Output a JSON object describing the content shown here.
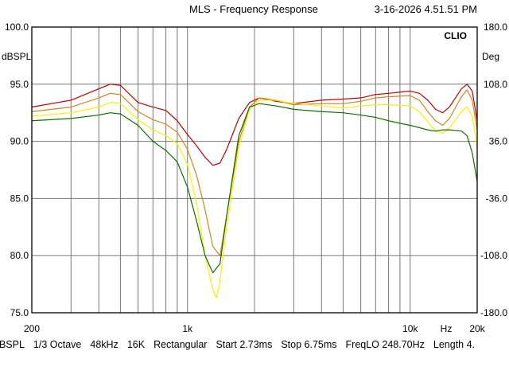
{
  "header": {
    "title": "MLS - Frequency Response",
    "datetime": "3-16-2026 4.51.51 PM"
  },
  "footer": {
    "items": [
      "dBSPL",
      "1/3 Octave",
      "48kHz",
      "16K",
      "Rectangular",
      "Start 2.73ms",
      "Stop 6.75ms",
      "FreqLO 248.70Hz",
      "Length 4."
    ]
  },
  "chart_data": {
    "type": "line",
    "brand": "CLIO",
    "xscale": "log",
    "xlim": [
      200,
      20000
    ],
    "ylim": [
      75,
      100
    ],
    "y2lim": [
      -180,
      180
    ],
    "ylabel": "dBSPL",
    "y2label": "Deg",
    "xunit": "Hz",
    "grid": true,
    "xticks": [
      {
        "value": 200,
        "label": "200"
      },
      {
        "value": 1000,
        "label": "1k"
      },
      {
        "value": 10000,
        "label": "10k"
      },
      {
        "value": 20000,
        "label": "20k"
      }
    ],
    "yticks": [
      "75.0",
      "80.0",
      "85.0",
      "90.0",
      "95.0",
      "100.0"
    ],
    "y2ticks": [
      "-180.0",
      "-108.0",
      "-36.0",
      "36.0",
      "108.0",
      "180.0"
    ],
    "series": [
      {
        "color": "#c00000",
        "points": [
          [
            200,
            93.0
          ],
          [
            300,
            93.6
          ],
          [
            400,
            94.6
          ],
          [
            450,
            95.0
          ],
          [
            500,
            94.9
          ],
          [
            600,
            93.4
          ],
          [
            700,
            93.0
          ],
          [
            800,
            92.7
          ],
          [
            900,
            91.8
          ],
          [
            1000,
            90.6
          ],
          [
            1100,
            89.6
          ],
          [
            1200,
            88.6
          ],
          [
            1300,
            87.9
          ],
          [
            1400,
            88.1
          ],
          [
            1500,
            89.3
          ],
          [
            1700,
            92.0
          ],
          [
            1900,
            93.4
          ],
          [
            2100,
            93.8
          ],
          [
            2500,
            93.5
          ],
          [
            3000,
            93.3
          ],
          [
            4000,
            93.6
          ],
          [
            5000,
            93.7
          ],
          [
            6000,
            93.8
          ],
          [
            7000,
            94.1
          ],
          [
            8000,
            94.2
          ],
          [
            10000,
            94.4
          ],
          [
            11000,
            94.2
          ],
          [
            12000,
            93.6
          ],
          [
            13000,
            92.8
          ],
          [
            14000,
            92.5
          ],
          [
            15000,
            93.0
          ],
          [
            17000,
            94.6
          ],
          [
            18000,
            95.0
          ],
          [
            19000,
            94.4
          ],
          [
            20000,
            91.8
          ]
        ]
      },
      {
        "color": "#d2841e",
        "points": [
          [
            200,
            92.6
          ],
          [
            300,
            93.0
          ],
          [
            400,
            93.8
          ],
          [
            450,
            94.2
          ],
          [
            500,
            94.1
          ],
          [
            600,
            92.6
          ],
          [
            700,
            91.9
          ],
          [
            800,
            91.5
          ],
          [
            900,
            90.8
          ],
          [
            1000,
            89.3
          ],
          [
            1100,
            87.0
          ],
          [
            1200,
            84.0
          ],
          [
            1300,
            80.8
          ],
          [
            1400,
            80.0
          ],
          [
            1500,
            83.5
          ],
          [
            1700,
            90.0
          ],
          [
            1900,
            93.0
          ],
          [
            2100,
            93.8
          ],
          [
            2500,
            93.6
          ],
          [
            3000,
            93.2
          ],
          [
            4000,
            93.3
          ],
          [
            5000,
            93.3
          ],
          [
            6000,
            93.5
          ],
          [
            7000,
            93.8
          ],
          [
            8000,
            93.9
          ],
          [
            10000,
            94.0
          ],
          [
            11000,
            93.6
          ],
          [
            12000,
            92.6
          ],
          [
            13000,
            91.8
          ],
          [
            14000,
            91.4
          ],
          [
            15000,
            92.0
          ],
          [
            17000,
            93.9
          ],
          [
            18000,
            94.5
          ],
          [
            19000,
            93.6
          ],
          [
            20000,
            91.0
          ]
        ]
      },
      {
        "color": "#ffef00",
        "points": [
          [
            200,
            92.2
          ],
          [
            300,
            92.5
          ],
          [
            400,
            93.0
          ],
          [
            450,
            93.4
          ],
          [
            500,
            93.3
          ],
          [
            600,
            91.9
          ],
          [
            700,
            91.0
          ],
          [
            800,
            90.5
          ],
          [
            900,
            89.8
          ],
          [
            1000,
            88.0
          ],
          [
            1100,
            84.5
          ],
          [
            1200,
            80.0
          ],
          [
            1300,
            77.0
          ],
          [
            1350,
            76.3
          ],
          [
            1400,
            77.8
          ],
          [
            1500,
            82.5
          ],
          [
            1700,
            89.5
          ],
          [
            1900,
            92.8
          ],
          [
            2100,
            93.6
          ],
          [
            2500,
            93.6
          ],
          [
            3000,
            93.3
          ],
          [
            4000,
            93.1
          ],
          [
            5000,
            92.9
          ],
          [
            6000,
            93.1
          ],
          [
            7000,
            93.2
          ],
          [
            8000,
            93.2
          ],
          [
            10000,
            93.1
          ],
          [
            11000,
            92.6
          ],
          [
            12000,
            91.7
          ],
          [
            13000,
            90.9
          ],
          [
            14000,
            90.7
          ],
          [
            15000,
            91.2
          ],
          [
            17000,
            92.6
          ],
          [
            18000,
            93.0
          ],
          [
            19000,
            92.2
          ],
          [
            20000,
            89.5
          ]
        ]
      },
      {
        "color": "#0f6e00",
        "points": [
          [
            200,
            91.8
          ],
          [
            300,
            92.0
          ],
          [
            400,
            92.3
          ],
          [
            450,
            92.5
          ],
          [
            500,
            92.4
          ],
          [
            600,
            91.4
          ],
          [
            700,
            90.0
          ],
          [
            800,
            89.2
          ],
          [
            900,
            88.2
          ],
          [
            1000,
            86.0
          ],
          [
            1100,
            83.0
          ],
          [
            1200,
            80.0
          ],
          [
            1300,
            78.5
          ],
          [
            1400,
            79.3
          ],
          [
            1500,
            83.5
          ],
          [
            1700,
            90.5
          ],
          [
            1900,
            93.0
          ],
          [
            2100,
            93.3
          ],
          [
            2500,
            93.1
          ],
          [
            3000,
            92.8
          ],
          [
            4000,
            92.6
          ],
          [
            5000,
            92.5
          ],
          [
            6000,
            92.3
          ],
          [
            7000,
            92.1
          ],
          [
            8000,
            91.8
          ],
          [
            10000,
            91.4
          ],
          [
            11000,
            91.2
          ],
          [
            12000,
            91.0
          ],
          [
            13000,
            90.9
          ],
          [
            14000,
            91.0
          ],
          [
            15000,
            91.0
          ],
          [
            17000,
            90.9
          ],
          [
            18000,
            90.5
          ],
          [
            19000,
            89.0
          ],
          [
            20000,
            86.5
          ]
        ]
      }
    ]
  }
}
